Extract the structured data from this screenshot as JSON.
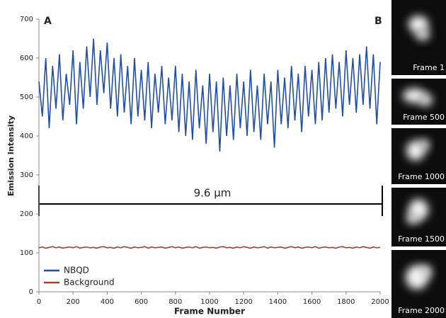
{
  "chart_data": {
    "type": "line",
    "ylabel": "Emission Intensity",
    "xlabel": "Frame Number",
    "annotations": [
      "A",
      "B",
      "9.6 µm"
    ],
    "x": [
      0,
      20,
      40,
      60,
      80,
      100,
      120,
      140,
      160,
      180,
      200,
      220,
      240,
      260,
      280,
      300,
      320,
      340,
      360,
      380,
      400,
      420,
      440,
      460,
      480,
      500,
      520,
      540,
      560,
      580,
      600,
      620,
      640,
      660,
      680,
      700,
      720,
      740,
      760,
      780,
      800,
      820,
      840,
      860,
      880,
      900,
      920,
      940,
      960,
      980,
      1000,
      1020,
      1040,
      1060,
      1080,
      1100,
      1120,
      1140,
      1160,
      1180,
      1200,
      1220,
      1240,
      1260,
      1280,
      1300,
      1320,
      1340,
      1360,
      1380,
      1400,
      1420,
      1440,
      1460,
      1480,
      1500,
      1520,
      1540,
      1560,
      1580,
      1600,
      1620,
      1640,
      1660,
      1680,
      1700,
      1720,
      1740,
      1760,
      1780,
      1800,
      1820,
      1840,
      1860,
      1880,
      1900,
      1920,
      1940,
      1960,
      1980,
      2000
    ],
    "series": [
      {
        "name": "NBQD",
        "color": "#1f4fa8",
        "values": [
          540,
          450,
          600,
          420,
          580,
          470,
          610,
          440,
          560,
          480,
          620,
          430,
          590,
          470,
          630,
          500,
          650,
          480,
          620,
          510,
          640,
          470,
          600,
          450,
          610,
          460,
          580,
          430,
          600,
          450,
          570,
          440,
          590,
          420,
          560,
          460,
          580,
          430,
          550,
          440,
          580,
          410,
          560,
          400,
          540,
          390,
          570,
          420,
          530,
          380,
          560,
          410,
          540,
          360,
          550,
          400,
          530,
          390,
          560,
          420,
          540,
          400,
          570,
          410,
          530,
          390,
          560,
          430,
          540,
          370,
          570,
          430,
          550,
          420,
          580,
          440,
          560,
          410,
          580,
          450,
          570,
          430,
          590,
          440,
          600,
          460,
          610,
          470,
          590,
          450,
          620,
          480,
          600,
          460,
          610,
          480,
          630,
          470,
          610,
          430,
          590
        ]
      },
      {
        "name": "Background",
        "color": "#b03a2e",
        "values": [
          113,
          115,
          112,
          114,
          116,
          113,
          115,
          112,
          114,
          115,
          113,
          116,
          112,
          114,
          115,
          113,
          114,
          112,
          115,
          116,
          113,
          114,
          112,
          115,
          113,
          116,
          114,
          112,
          115,
          113,
          114,
          116,
          112,
          115,
          113,
          114,
          115,
          112,
          114,
          116,
          113,
          115,
          112,
          114,
          115,
          113,
          116,
          112,
          114,
          115,
          113,
          114,
          112,
          115,
          116,
          113,
          114,
          112,
          115,
          113,
          116,
          114,
          112,
          115,
          113,
          114,
          116,
          112,
          115,
          113,
          114,
          115,
          112,
          114,
          116,
          113,
          115,
          112,
          114,
          115,
          113,
          116,
          112,
          114,
          115,
          113,
          114,
          112,
          115,
          116,
          113,
          114,
          112,
          115,
          113,
          116,
          114,
          112,
          115,
          113,
          114
        ]
      }
    ],
    "xlim": [
      0,
      2000
    ],
    "xticks": [
      0,
      200,
      400,
      600,
      800,
      1000,
      1200,
      1400,
      1600,
      1800,
      2000
    ],
    "ylim": [
      0,
      700
    ],
    "yticks": [
      0,
      100,
      200,
      300,
      400,
      500,
      600,
      700
    ],
    "legend": "lower left"
  },
  "panels": [
    "Frame 1",
    "Frame 500",
    "Frame 1000",
    "Frame 1500",
    "Frame 2000"
  ]
}
